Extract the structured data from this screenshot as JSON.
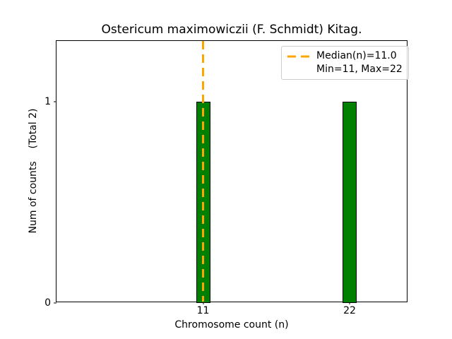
{
  "chart_data": {
    "type": "bar",
    "title": "Ostericum maximowiczii (F. Schmidt) Kitag.",
    "xlabel": "Chromosome count (n)",
    "ylabel": "Num of counts    (Total 2)",
    "categories": [
      11,
      22
    ],
    "values": [
      1,
      1
    ],
    "total_counts": 2,
    "median": 11.0,
    "min": 11,
    "max": 22,
    "bar_width_units": 1.0,
    "xlim": [
      0,
      26.4
    ],
    "ylim": [
      0,
      1.3
    ],
    "xticks": [
      {
        "value": 11,
        "label": "11"
      },
      {
        "value": 22,
        "label": "22"
      }
    ],
    "yticks": [
      {
        "value": 0,
        "label": "0"
      },
      {
        "value": 1,
        "label": "1"
      }
    ],
    "grid": false,
    "colors": {
      "bar_fill": "#008000",
      "bar_edge": "#000000",
      "median_line": "#ffa500",
      "spine": "#000000",
      "legend_border": "#cccccc",
      "text": "#000000"
    },
    "legend_position": "upper right"
  },
  "legend": {
    "items": [
      {
        "swatch": "dashed-line",
        "label": "Median(n)=11.0"
      },
      {
        "swatch": "none",
        "label": "Min=11, Max=22"
      }
    ]
  }
}
